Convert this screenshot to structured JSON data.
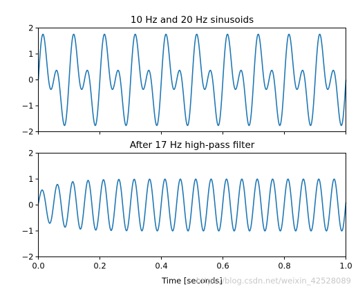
{
  "chart_data": [
    {
      "type": "line",
      "title": "10 Hz and 20 Hz sinusoids",
      "xlim": [
        0,
        1
      ],
      "ylim": [
        -2,
        2
      ],
      "y_ticks": [
        2,
        1,
        0,
        -1,
        -2
      ],
      "y_tick_labels": [
        "2",
        "1",
        "0",
        "−1",
        "−2"
      ],
      "x_ticks": [
        0.0,
        0.2,
        0.4,
        0.6,
        0.8,
        1.0
      ],
      "x_tick_labels": [],
      "series": [
        {
          "function": "sin(2*pi*10*t) + sin(2*pi*20*t)",
          "t_start": 0,
          "t_end": 1,
          "color": "#1f77b4"
        }
      ]
    },
    {
      "type": "line",
      "title": "After 17 Hz high-pass filter",
      "xlim": [
        0,
        1
      ],
      "ylim": [
        -2,
        2
      ],
      "y_ticks": [
        2,
        1,
        0,
        -1,
        -2
      ],
      "y_tick_labels": [
        "2",
        "1",
        "0",
        "−1",
        "−2"
      ],
      "x_ticks": [
        0.0,
        0.2,
        0.4,
        0.6,
        0.8,
        1.0
      ],
      "x_tick_labels": [
        "0.0",
        "0.2",
        "0.4",
        "0.6",
        "0.8",
        "1.0"
      ],
      "xlabel": "Time [seconds]",
      "series": [
        {
          "function": "approx. 20 Hz sinusoid, amplitude rising from ~0.5 to ~1.0 by t = 0.2",
          "frequency_hz": 20,
          "amplitude": 1.0,
          "t_start": 0,
          "t_end": 1,
          "color": "#1f77b4"
        }
      ]
    }
  ],
  "watermark": "https://blog.csdn.net/weixin_42528089"
}
